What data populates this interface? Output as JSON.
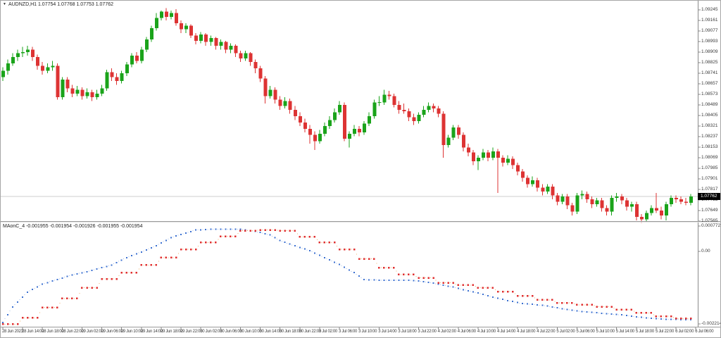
{
  "title": {
    "text": "AUDNZD,H1  1.07754 1.07768 1.07753 1.07762"
  },
  "colors": {
    "up_candle": "#1aa31a",
    "down_candle": "#dd3333",
    "blue_dot": "#3a6fd0",
    "blue_connector": "#a5c2ee",
    "red_dot": "#e03030",
    "red_connector": "#f2b06a",
    "current_price_line": "#cfcfcf",
    "axis_line": "#8a8a8a",
    "price_box_bg": "#000000",
    "price_box_text": "#ffffff"
  },
  "chart_data": [
    {
      "type": "candlestick",
      "symbol": "AUDNZD",
      "timeframe": "H1",
      "title": "AUDNZD,H1  1.07754 1.07768 1.07753 1.07762",
      "current_price": 1.07762,
      "current_price_label": "1.07762",
      "y_axis": {
        "labels": [
          "1.09245",
          "1.09161",
          "1.09077",
          "1.08993",
          "1.08909",
          "1.08825",
          "1.08741",
          "1.08657",
          "1.08573",
          "1.08489",
          "1.08405",
          "1.08321",
          "1.08237",
          "1.08153",
          "1.08069",
          "1.07985",
          "1.07901",
          "1.07817",
          "1.07733",
          "1.07649",
          "1.07565"
        ],
        "step": 0.00084
      },
      "x_axis": {
        "labels": [
          "28 Jun 2023",
          "28 Jun 14:00",
          "28 Jun 18:00",
          "28 Jun 22:00",
          "29 Jun 02:00",
          "29 Jun 06:00",
          "29 Jun 10:00",
          "29 Jun 14:00",
          "29 Jun 18:00",
          "29 Jun 22:00",
          "30 Jun 02:00",
          "30 Jun 06:00",
          "30 Jun 10:00",
          "30 Jun 14:00",
          "30 Jun 18:00",
          "30 Jun 22:00",
          "3 Jul 02:00",
          "3 Jul 06:00",
          "3 Jul 10:00",
          "3 Jul 14:00",
          "3 Jul 18:00",
          "3 Jul 22:00",
          "4 Jul 02:00",
          "4 Jul 06:00",
          "4 Jul 10:00",
          "4 Jul 14:00",
          "4 Jul 18:00",
          "4 Jul 22:00",
          "5 Jul 02:00",
          "5 Jul 06:00",
          "5 Jul 10:00",
          "5 Jul 14:00",
          "5 Jul 18:00",
          "5 Jul 22:00",
          "6 Jul 02:00",
          "6 Jul 06:00"
        ],
        "candles_per_label": 4
      },
      "candles": [
        [
          1.0871,
          1.0879,
          1.0868,
          1.0876
        ],
        [
          1.0876,
          1.0885,
          1.0873,
          1.0882
        ],
        [
          1.0882,
          1.089,
          1.088,
          1.0887
        ],
        [
          1.0887,
          1.0893,
          1.0884,
          1.089
        ],
        [
          1.089,
          1.0895,
          1.0887,
          1.0891
        ],
        [
          1.0891,
          1.0896,
          1.0888,
          1.0893
        ],
        [
          1.0893,
          1.0895,
          1.0884,
          1.0887
        ],
        [
          1.0887,
          1.0889,
          1.0877,
          1.088
        ],
        [
          1.088,
          1.0883,
          1.0873,
          1.0876
        ],
        [
          1.0876,
          1.0882,
          1.0874,
          1.0879
        ],
        [
          1.0879,
          1.0884,
          1.0876,
          1.088
        ],
        [
          1.088,
          1.0882,
          1.0853,
          1.0855
        ],
        [
          1.0855,
          1.0871,
          1.0853,
          1.0869
        ],
        [
          1.0869,
          1.0871,
          1.0859,
          1.0862
        ],
        [
          1.0862,
          1.0865,
          1.0855,
          1.0858
        ],
        [
          1.0858,
          1.0864,
          1.0856,
          1.0861
        ],
        [
          1.0861,
          1.0863,
          1.0853,
          1.0856
        ],
        [
          1.0856,
          1.0862,
          1.0854,
          1.0859
        ],
        [
          1.0859,
          1.0861,
          1.0852,
          1.0855
        ],
        [
          1.0855,
          1.0861,
          1.0853,
          1.0858
        ],
        [
          1.0858,
          1.0865,
          1.0856,
          1.0862
        ],
        [
          1.0862,
          1.0877,
          1.086,
          1.0875
        ],
        [
          1.0875,
          1.0878,
          1.0868,
          1.0871
        ],
        [
          1.0871,
          1.0874,
          1.0865,
          1.0868
        ],
        [
          1.0868,
          1.0876,
          1.0866,
          1.0874
        ],
        [
          1.0874,
          1.0883,
          1.0872,
          1.0881
        ],
        [
          1.0881,
          1.089,
          1.0879,
          1.0888
        ],
        [
          1.0888,
          1.0891,
          1.0882,
          1.0884
        ],
        [
          1.0884,
          1.0895,
          1.0882,
          1.0893
        ],
        [
          1.0893,
          1.0903,
          1.0891,
          1.0901
        ],
        [
          1.0901,
          1.0912,
          1.0899,
          1.091
        ],
        [
          1.091,
          1.0922,
          1.0908,
          1.0918
        ],
        [
          1.0918,
          1.0924,
          1.0916,
          1.0923
        ],
        [
          1.0923,
          1.0926,
          1.0916,
          1.0919
        ],
        [
          1.0919,
          1.0924,
          1.0917,
          1.0922
        ],
        [
          1.0922,
          1.0925,
          1.0912,
          1.0914
        ],
        [
          1.0914,
          1.0916,
          1.0906,
          1.0909
        ],
        [
          1.0909,
          1.0914,
          1.0906,
          1.0912
        ],
        [
          1.0912,
          1.0913,
          1.0902,
          1.0904
        ],
        [
          1.0904,
          1.0906,
          1.0897,
          1.09
        ],
        [
          1.09,
          1.0907,
          1.0898,
          1.0905
        ],
        [
          1.0905,
          1.0906,
          1.0896,
          1.0899
        ],
        [
          1.0899,
          1.0904,
          1.0896,
          1.0902
        ],
        [
          1.0902,
          1.0903,
          1.0893,
          1.0896
        ],
        [
          1.0896,
          1.0901,
          1.0893,
          1.0899
        ],
        [
          1.0899,
          1.09,
          1.089,
          1.0893
        ],
        [
          1.0893,
          1.0898,
          1.089,
          1.0896
        ],
        [
          1.0896,
          1.0897,
          1.0887,
          1.089
        ],
        [
          1.089,
          1.0892,
          1.0883,
          1.0886
        ],
        [
          1.0886,
          1.0892,
          1.0884,
          1.089
        ],
        [
          1.089,
          1.0891,
          1.088,
          1.0883
        ],
        [
          1.0883,
          1.0885,
          1.0874,
          1.0878
        ],
        [
          1.0878,
          1.088,
          1.0867,
          1.087
        ],
        [
          1.087,
          1.0872,
          1.085,
          1.0856
        ],
        [
          1.0856,
          1.0864,
          1.0854,
          1.0861
        ],
        [
          1.0861,
          1.0863,
          1.085,
          1.0853
        ],
        [
          1.0853,
          1.0856,
          1.0845,
          1.0848
        ],
        [
          1.0848,
          1.0855,
          1.0846,
          1.0852
        ],
        [
          1.0852,
          1.0854,
          1.0842,
          1.0845
        ],
        [
          1.0845,
          1.0848,
          1.0837,
          1.084
        ],
        [
          1.084,
          1.0843,
          1.0832,
          1.0835
        ],
        [
          1.0835,
          1.0838,
          1.0827,
          1.083
        ],
        [
          1.083,
          1.0833,
          1.0818,
          1.0825
        ],
        [
          1.0825,
          1.0828,
          1.0813,
          1.082
        ],
        [
          1.082,
          1.0829,
          1.0818,
          1.0826
        ],
        [
          1.0826,
          1.0835,
          1.0824,
          1.0832
        ],
        [
          1.0832,
          1.084,
          1.083,
          1.0837
        ],
        [
          1.0837,
          1.0846,
          1.0835,
          1.0843
        ],
        [
          1.0843,
          1.0852,
          1.0841,
          1.0849
        ],
        [
          1.0849,
          1.0851,
          1.082,
          1.0822
        ],
        [
          1.0822,
          1.0828,
          1.0815,
          1.0826
        ],
        [
          1.0826,
          1.0833,
          1.0824,
          1.083
        ],
        [
          1.083,
          1.0832,
          1.0824,
          1.0827
        ],
        [
          1.0827,
          1.0836,
          1.0825,
          1.0834
        ],
        [
          1.0834,
          1.0843,
          1.0832,
          1.084
        ],
        [
          1.084,
          1.0853,
          1.0838,
          1.0851
        ],
        [
          1.0851,
          1.0856,
          1.0848,
          1.0851
        ],
        [
          1.0851,
          1.0861,
          1.0849,
          1.0857
        ],
        [
          1.0857,
          1.086,
          1.0853,
          1.0856
        ],
        [
          1.0856,
          1.0858,
          1.0847,
          1.0849
        ],
        [
          1.0849,
          1.0852,
          1.0842,
          1.0845
        ],
        [
          1.0845,
          1.085,
          1.0842,
          1.0844
        ],
        [
          1.0844,
          1.0846,
          1.0836,
          1.0839
        ],
        [
          1.0839,
          1.0842,
          1.0833,
          1.0836
        ],
        [
          1.0836,
          1.0843,
          1.0834,
          1.0841
        ],
        [
          1.0841,
          1.0848,
          1.0839,
          1.0845
        ],
        [
          1.0845,
          1.0851,
          1.0843,
          1.0848
        ],
        [
          1.0848,
          1.085,
          1.0843,
          1.0846
        ],
        [
          1.0846,
          1.0848,
          1.0839,
          1.0842
        ],
        [
          1.0842,
          1.0844,
          1.0807,
          1.0817
        ],
        [
          1.0817,
          1.0825,
          1.0815,
          1.0823
        ],
        [
          1.0823,
          1.0833,
          1.0821,
          1.0831
        ],
        [
          1.0831,
          1.0833,
          1.0822,
          1.0825
        ],
        [
          1.0825,
          1.0827,
          1.0812,
          1.0815
        ],
        [
          1.0815,
          1.0818,
          1.0808,
          1.0811
        ],
        [
          1.0811,
          1.0813,
          1.0801,
          1.0804
        ],
        [
          1.0804,
          1.0809,
          1.0797,
          1.0807
        ],
        [
          1.0807,
          1.0814,
          1.0805,
          1.0811
        ],
        [
          1.0811,
          1.0813,
          1.0804,
          1.0807
        ],
        [
          1.0807,
          1.0815,
          1.0805,
          1.0812
        ],
        [
          1.0812,
          1.0814,
          1.0779,
          1.0807
        ],
        [
          1.0807,
          1.0809,
          1.08,
          1.0803
        ],
        [
          1.0803,
          1.0809,
          1.0801,
          1.0806
        ],
        [
          1.0806,
          1.0808,
          1.0798,
          1.0801
        ],
        [
          1.0801,
          1.0803,
          1.0793,
          1.0796
        ],
        [
          1.0796,
          1.0798,
          1.0788,
          1.0791
        ],
        [
          1.0791,
          1.0793,
          1.0783,
          1.0786
        ],
        [
          1.0786,
          1.0792,
          1.0784,
          1.0789
        ],
        [
          1.0789,
          1.0791,
          1.078,
          1.0783
        ],
        [
          1.0783,
          1.0786,
          1.0777,
          1.078
        ],
        [
          1.078,
          1.0786,
          1.0778,
          1.0784
        ],
        [
          1.0784,
          1.0786,
          1.0774,
          1.0777
        ],
        [
          1.0777,
          1.0779,
          1.0769,
          1.0772
        ],
        [
          1.0772,
          1.0778,
          1.077,
          1.0776
        ],
        [
          1.0776,
          1.0778,
          1.0766,
          1.0769
        ],
        [
          1.0769,
          1.0771,
          1.0761,
          1.0764
        ],
        [
          1.0764,
          1.0779,
          1.0762,
          1.0777
        ],
        [
          1.0777,
          1.0781,
          1.0774,
          1.0778
        ],
        [
          1.0778,
          1.078,
          1.0771,
          1.0774
        ],
        [
          1.0774,
          1.0776,
          1.0767,
          1.077
        ],
        [
          1.077,
          1.0775,
          1.0768,
          1.0773
        ],
        [
          1.0773,
          1.0775,
          1.0764,
          1.0767
        ],
        [
          1.0767,
          1.0769,
          1.0761,
          1.0764
        ],
        [
          1.0764,
          1.0777,
          1.0761,
          1.0775
        ],
        [
          1.0775,
          1.0779,
          1.0772,
          1.0776
        ],
        [
          1.0776,
          1.0778,
          1.077,
          1.0773
        ],
        [
          1.0773,
          1.0775,
          1.0765,
          1.0768
        ],
        [
          1.0768,
          1.0772,
          1.0764,
          1.077
        ],
        [
          1.077,
          1.0772,
          1.0757,
          1.076
        ],
        [
          1.076,
          1.0762,
          1.0755,
          1.0758
        ],
        [
          1.0758,
          1.0765,
          1.0756,
          1.0763
        ],
        [
          1.0763,
          1.0769,
          1.0761,
          1.0767
        ],
        [
          1.0767,
          1.0779,
          1.0763,
          1.0765
        ],
        [
          1.0765,
          1.0768,
          1.0758,
          1.0761
        ],
        [
          1.0761,
          1.0772,
          1.0757,
          1.077
        ],
        [
          1.077,
          1.0777,
          1.0768,
          1.0775
        ],
        [
          1.0775,
          1.0777,
          1.0771,
          1.0774
        ],
        [
          1.0774,
          1.0776,
          1.077,
          1.0772
        ],
        [
          1.0772,
          1.0775,
          1.0769,
          1.0771
        ],
        [
          1.0771,
          1.0778,
          1.0769,
          1.07762
        ]
      ]
    },
    {
      "type": "scatter",
      "name": "MAonC_4",
      "label": "MAonC_4 -0.001955 -0.001954 -0.001926 -0.001955 -0.001954",
      "y_axis": {
        "labels": [
          {
            "text": "0.000772",
            "value": 0.000772
          },
          {
            "text": "0.00",
            "value": 0
          },
          {
            "text": "-0.002214",
            "value": -0.002214
          }
        ]
      },
      "series": [
        {
          "name": "fast-dotted-line",
          "style": "dots",
          "color": "#3a6fd0",
          "points": [
            [
              0,
              -0.00217
            ],
            [
              2,
              -0.0017
            ],
            [
              5,
              -0.00125
            ],
            [
              8,
              -0.001
            ],
            [
              11,
              -0.00086
            ],
            [
              14,
              -0.00072
            ],
            [
              17,
              -0.00062
            ],
            [
              20,
              -0.0005
            ],
            [
              22,
              -0.00042
            ],
            [
              25,
              -0.00019
            ],
            [
              28,
              -2e-05
            ],
            [
              31,
              0.00017
            ],
            [
              34,
              0.00042
            ],
            [
              37,
              0.00056
            ],
            [
              39,
              0.00065
            ],
            [
              42,
              0.00067
            ],
            [
              48,
              0.00068
            ],
            [
              51,
              0.00061
            ],
            [
              54,
              0.0005
            ],
            [
              56,
              0.00033
            ],
            [
              59,
              0.00017
            ],
            [
              62,
              2e-05
            ],
            [
              65,
              -0.00019
            ],
            [
              68,
              -0.0004
            ],
            [
              71,
              -0.00065
            ],
            [
              73,
              -0.00086
            ],
            [
              76,
              -0.00088
            ],
            [
              82,
              -0.00088
            ],
            [
              85,
              -0.00092
            ],
            [
              88,
              -0.001
            ],
            [
              91,
              -0.00109
            ],
            [
              93,
              -0.00117
            ],
            [
              96,
              -0.00127
            ],
            [
              99,
              -0.0014
            ],
            [
              102,
              -0.0015
            ],
            [
              105,
              -0.00159
            ],
            [
              108,
              -0.00163
            ],
            [
              110,
              -0.00167
            ],
            [
              113,
              -0.00175
            ],
            [
              116,
              -0.00182
            ],
            [
              119,
              -0.00186
            ],
            [
              122,
              -0.0019
            ],
            [
              125,
              -0.00194
            ],
            [
              128,
              -0.002
            ],
            [
              131,
              -0.00204
            ],
            [
              134,
              -0.00207
            ],
            [
              137,
              -0.00208
            ],
            [
              139,
              -0.00209
            ]
          ]
        },
        {
          "name": "slow-stepped-line",
          "style": "step-dots",
          "color": "#e03030",
          "bars_per_step": 4,
          "step_values": [
            -0.00222,
            -0.00203,
            -0.00171,
            -0.00144,
            -0.00111,
            -0.00084,
            -0.00065,
            -0.00042,
            -0.00019,
            6e-05,
            0.00027,
            0.00046,
            0.00063,
            0.00065,
            0.00063,
            0.00044,
            0.00027,
            6e-05,
            -0.00023,
            -0.0005,
            -0.00071,
            -0.00081,
            -0.00096,
            -0.00103,
            -0.00111,
            -0.00123,
            -0.00136,
            -0.00148,
            -0.00157,
            -0.00163,
            -0.00169,
            -0.00178,
            -0.00188,
            -0.00198,
            -0.00205
          ]
        }
      ]
    }
  ]
}
